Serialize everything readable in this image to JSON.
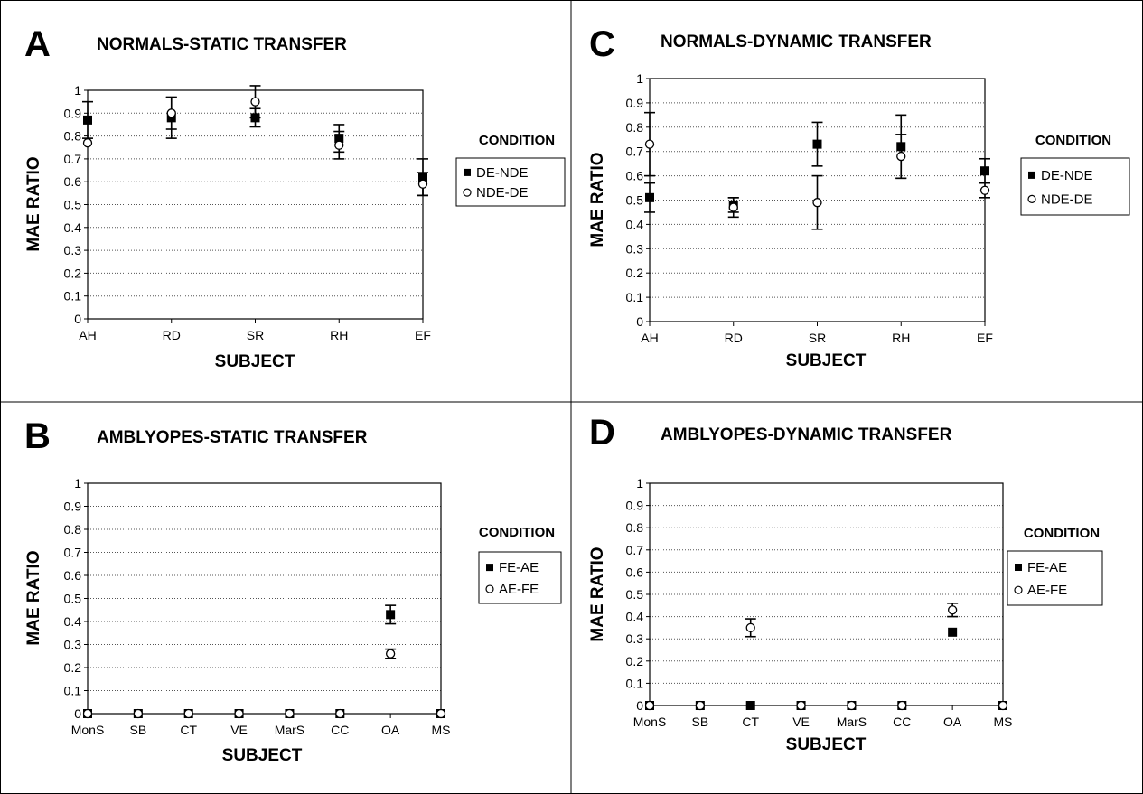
{
  "chart_data": [
    {
      "panel": "A",
      "type": "scatter",
      "title": "NORMALS-STATIC TRANSFER",
      "xlabel": "SUBJECT",
      "ylabel": "MAE RATIO",
      "categories": [
        "AH",
        "RD",
        "SR",
        "RH",
        "EF"
      ],
      "ylim": [
        0,
        1
      ],
      "yticks": [
        "0",
        "0.1",
        "0.2",
        "0.3",
        "0.4",
        "0.5",
        "0.6",
        "0.7",
        "0.8",
        "0.9",
        "1"
      ],
      "grid": true,
      "legend": {
        "title": "CONDITION",
        "position": "right"
      },
      "series": [
        {
          "name": "DE-NDE",
          "marker": "filled-square",
          "values": [
            0.87,
            0.88,
            0.88,
            0.79,
            0.62
          ],
          "errors": [
            0.08,
            0.09,
            0.04,
            0.06,
            0.08
          ]
        },
        {
          "name": "NDE-DE",
          "marker": "open-circle",
          "values": [
            0.77,
            0.9,
            0.95,
            0.76,
            0.59
          ],
          "errors": [
            null,
            0.07,
            0.07,
            0.06,
            0.05
          ]
        }
      ]
    },
    {
      "panel": "C",
      "type": "scatter",
      "title": "NORMALS-DYNAMIC TRANSFER",
      "xlabel": "SUBJECT",
      "ylabel": "MAE RATIO",
      "categories": [
        "AH",
        "RD",
        "SR",
        "RH",
        "EF"
      ],
      "ylim": [
        0,
        1
      ],
      "yticks": [
        "0",
        "0.1",
        "0.2",
        "0.3",
        "0.4",
        "0.5",
        "0.6",
        "0.7",
        "0.8",
        "0.9",
        "1"
      ],
      "grid": true,
      "legend": {
        "title": "CONDITION",
        "position": "right"
      },
      "series": [
        {
          "name": "DE-NDE",
          "marker": "filled-square",
          "values": [
            0.51,
            0.48,
            0.73,
            0.72,
            0.62
          ],
          "errors": [
            0.06,
            0.03,
            0.09,
            0.13,
            0.05
          ]
        },
        {
          "name": "NDE-DE",
          "marker": "open-circle",
          "values": [
            0.73,
            0.47,
            0.49,
            0.68,
            0.54
          ],
          "errors": [
            0.13,
            0.04,
            0.11,
            0.09,
            0.03
          ]
        }
      ]
    },
    {
      "panel": "B",
      "type": "scatter",
      "title": "AMBLYOPES-STATIC TRANSFER",
      "xlabel": "SUBJECT",
      "ylabel": "MAE RATIO",
      "categories": [
        "MonS",
        "SB",
        "CT",
        "VE",
        "MarS",
        "CC",
        "OA",
        "MS"
      ],
      "ylim": [
        0,
        1
      ],
      "yticks": [
        "0",
        "0.1",
        "0.2",
        "0.3",
        "0.4",
        "0.5",
        "0.6",
        "0.7",
        "0.8",
        "0.9",
        "1"
      ],
      "grid": true,
      "legend": {
        "title": "CONDITION",
        "position": "right"
      },
      "series": [
        {
          "name": "FE-AE",
          "marker": "filled-square",
          "values": [
            0,
            0,
            0,
            0,
            0,
            0,
            0.43,
            0
          ],
          "errors": [
            null,
            null,
            null,
            null,
            null,
            null,
            0.04,
            null
          ]
        },
        {
          "name": "AE-FE",
          "marker": "open-circle",
          "values": [
            0,
            0,
            0,
            0,
            0,
            0,
            0.26,
            0
          ],
          "errors": [
            null,
            null,
            null,
            null,
            null,
            null,
            0.02,
            null
          ]
        }
      ]
    },
    {
      "panel": "D",
      "type": "scatter",
      "title": "AMBLYOPES-DYNAMIC TRANSFER",
      "xlabel": "SUBJECT",
      "ylabel": "MAE RATIO",
      "categories": [
        "MonS",
        "SB",
        "CT",
        "VE",
        "MarS",
        "CC",
        "OA",
        "MS"
      ],
      "ylim": [
        0,
        1
      ],
      "yticks": [
        "0",
        "0.1",
        "0.2",
        "0.3",
        "0.4",
        "0.5",
        "0.6",
        "0.7",
        "0.8",
        "0.9",
        "1"
      ],
      "grid": true,
      "legend": {
        "title": "CONDITION",
        "position": "right"
      },
      "series": [
        {
          "name": "FE-AE",
          "marker": "filled-square",
          "values": [
            0,
            0,
            0,
            0,
            0,
            0,
            0.33,
            0
          ],
          "errors": [
            null,
            null,
            null,
            null,
            null,
            null,
            null,
            null
          ]
        },
        {
          "name": "AE-FE",
          "marker": "open-circle",
          "values": [
            0,
            0,
            0.35,
            0,
            0,
            0,
            0.43,
            0
          ],
          "errors": [
            null,
            null,
            0.04,
            null,
            null,
            null,
            0.03,
            null
          ]
        }
      ]
    }
  ]
}
